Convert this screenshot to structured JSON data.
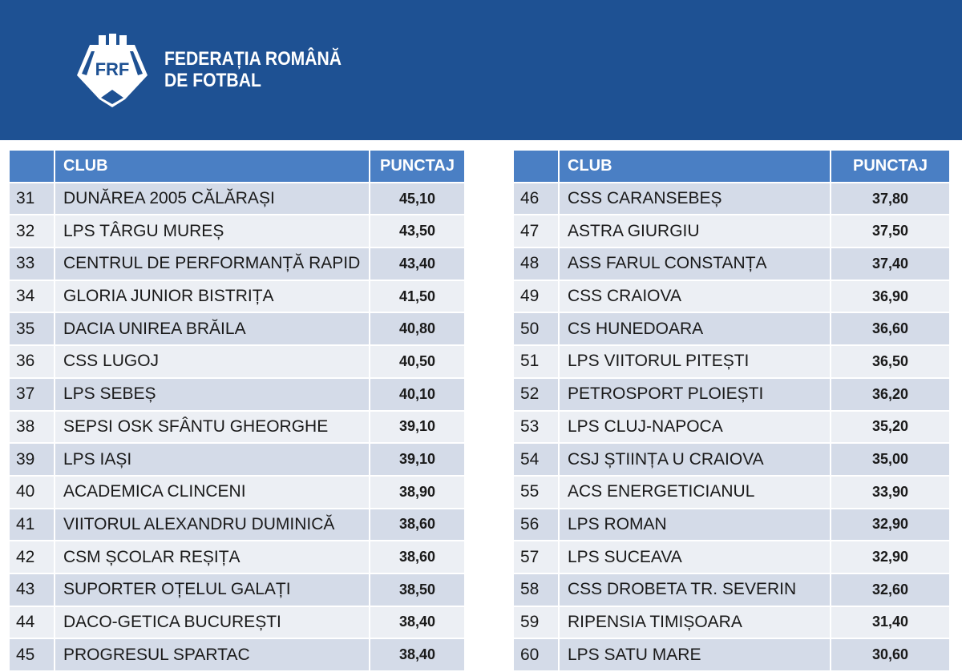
{
  "header": {
    "logo_text": "FRF",
    "org_line1": "FEDERAȚIA ROMÂNĂ",
    "org_line2": "DE FOTBAL",
    "background": "#1e5193"
  },
  "columns": {
    "club": "CLUB",
    "points": "PUNCTAJ"
  },
  "left_table": [
    {
      "rank": "31",
      "club": "DUNĂREA 2005 CĂLĂRAȘI",
      "points": "45,10"
    },
    {
      "rank": "32",
      "club": "LPS TÂRGU MUREȘ",
      "points": "43,50"
    },
    {
      "rank": "33",
      "club": "CENTRUL DE PERFORMANȚĂ RAPID",
      "points": "43,40"
    },
    {
      "rank": "34",
      "club": "GLORIA JUNIOR BISTRIȚA",
      "points": "41,50"
    },
    {
      "rank": "35",
      "club": "DACIA UNIREA BRĂILA",
      "points": "40,80"
    },
    {
      "rank": "36",
      "club": "CSS LUGOJ",
      "points": "40,50"
    },
    {
      "rank": "37",
      "club": "LPS SEBEȘ",
      "points": "40,10"
    },
    {
      "rank": "38",
      "club": "SEPSI OSK SFÂNTU GHEORGHE",
      "points": "39,10"
    },
    {
      "rank": "39",
      "club": "LPS IAȘI",
      "points": "39,10"
    },
    {
      "rank": "40",
      "club": "ACADEMICA CLINCENI",
      "points": "38,90"
    },
    {
      "rank": "41",
      "club": "VIITORUL ALEXANDRU DUMINICĂ",
      "points": "38,60"
    },
    {
      "rank": "42",
      "club": "CSM ȘCOLAR REȘIȚA",
      "points": "38,60"
    },
    {
      "rank": "43",
      "club": "SUPORTER OȚELUL GALAȚI",
      "points": "38,50"
    },
    {
      "rank": "44",
      "club": "DACO-GETICA BUCUREȘTI",
      "points": "38,40"
    },
    {
      "rank": "45",
      "club": "PROGRESUL SPARTAC",
      "points": "38,40"
    }
  ],
  "right_table": [
    {
      "rank": "46",
      "club": "CSS CARANSEBEȘ",
      "points": "37,80"
    },
    {
      "rank": "47",
      "club": "ASTRA GIURGIU",
      "points": "37,50"
    },
    {
      "rank": "48",
      "club": "ASS FARUL CONSTANȚA",
      "points": "37,40"
    },
    {
      "rank": "49",
      "club": "CSS CRAIOVA",
      "points": "36,90"
    },
    {
      "rank": "50",
      "club": "CS HUNEDOARA",
      "points": "36,60"
    },
    {
      "rank": "51",
      "club": "LPS VIITORUL PITEȘTI",
      "points": "36,50"
    },
    {
      "rank": "52",
      "club": "PETROSPORT PLOIEȘTI",
      "points": "36,20"
    },
    {
      "rank": "53",
      "club": "LPS CLUJ-NAPOCA",
      "points": "35,20"
    },
    {
      "rank": "54",
      "club": "CSJ ȘTIINȚA U CRAIOVA",
      "points": "35,00"
    },
    {
      "rank": "55",
      "club": "ACS ENERGETICIANUL",
      "points": "33,90"
    },
    {
      "rank": "56",
      "club": "LPS ROMAN",
      "points": "32,90"
    },
    {
      "rank": "57",
      "club": "LPS SUCEAVA",
      "points": "32,90"
    },
    {
      "rank": "58",
      "club": "CSS DROBETA TR. SEVERIN",
      "points": "32,60"
    },
    {
      "rank": "59",
      "club": "RIPENSIA TIMIȘOARA",
      "points": "31,40"
    },
    {
      "rank": "60",
      "club": "LPS SATU MARE",
      "points": "30,60"
    }
  ]
}
